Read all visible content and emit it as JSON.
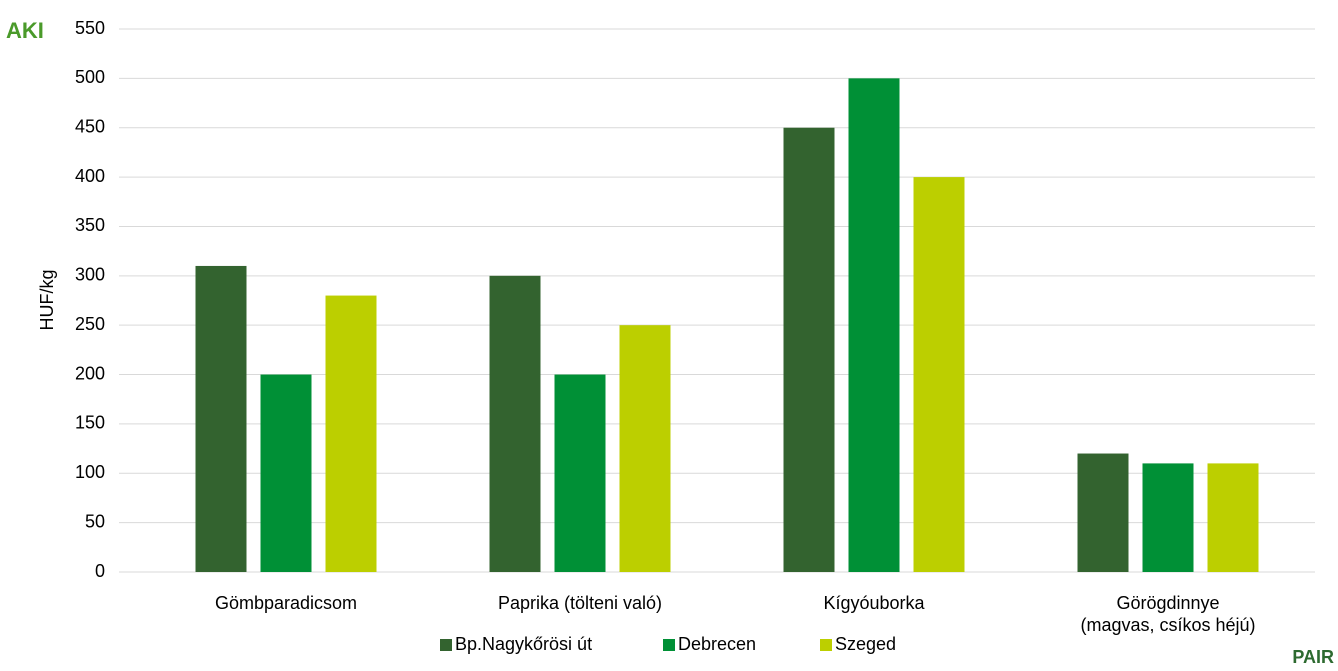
{
  "chart_data": {
    "type": "bar",
    "y_label": "HUF/kg",
    "categories": [
      "Gömbparadicsom",
      "Paprika (tölteni való)",
      "Kígyóuborka",
      "Görögdinnye\n(magvas, csíkos héjú)"
    ],
    "series": [
      {
        "name": "Bp.Nagykőrösi út",
        "color": "#33632f",
        "values": [
          310,
          300,
          450,
          120
        ]
      },
      {
        "name": "Debrecen",
        "color": "#009036",
        "values": [
          200,
          200,
          500,
          110
        ]
      },
      {
        "name": "Szeged",
        "color": "#bccf00",
        "values": [
          280,
          250,
          400,
          110
        ]
      }
    ],
    "ylim": [
      0,
      550
    ],
    "yticks": [
      0,
      50,
      100,
      150,
      200,
      250,
      300,
      350,
      400,
      450,
      500,
      550
    ],
    "grid": true,
    "legend": "bottom",
    "logos": {
      "top_left": "AKI",
      "bottom_right": "PAIR"
    }
  }
}
